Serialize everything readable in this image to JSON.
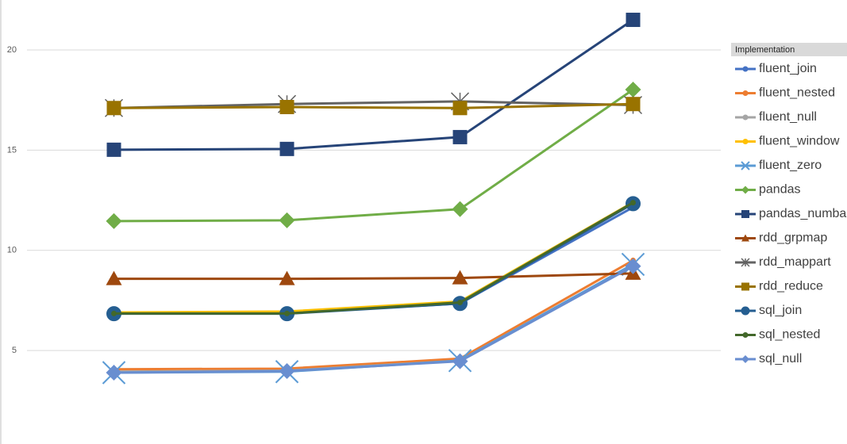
{
  "chart_data": {
    "type": "line",
    "categories": [
      null,
      null,
      null,
      null
    ],
    "ylim": [
      0.34,
      22.49
    ],
    "yticks": [
      5,
      10,
      15,
      20
    ],
    "grid": true,
    "legend_title": "Implementation",
    "legend": "right",
    "series": [
      {
        "name": "fluent_join",
        "color": "#4472c4",
        "marker": "circle",
        "marker_size": 3,
        "values": [
          6.85,
          6.87,
          7.35,
          12.15
        ]
      },
      {
        "name": "fluent_nested",
        "color": "#ed7d31",
        "marker": "circle",
        "marker_size": 3,
        "values": [
          4.07,
          4.1,
          4.6,
          9.5
        ]
      },
      {
        "name": "fluent_null",
        "color": "#a5a5a5",
        "marker": "circle",
        "marker_size": 3,
        "values": [
          3.95,
          4.0,
          4.5,
          9.3
        ]
      },
      {
        "name": "fluent_window",
        "color": "#ffc000",
        "marker": "circle",
        "marker_size": 3,
        "values": [
          6.9,
          6.95,
          7.45,
          12.4
        ]
      },
      {
        "name": "fluent_zero",
        "color": "#5b9bd5",
        "marker": "x",
        "marker_size": 14,
        "values": [
          3.9,
          3.95,
          4.5,
          9.3
        ]
      },
      {
        "name": "pandas",
        "color": "#70ad47",
        "marker": "diamond",
        "marker_size": 10,
        "values": [
          11.46,
          11.5,
          12.06,
          18.02
        ]
      },
      {
        "name": "pandas_numba",
        "color": "#264478",
        "marker": "square",
        "marker_size": 9,
        "values": [
          15.02,
          15.06,
          15.65,
          21.5
        ]
      },
      {
        "name": "rdd_grpmap",
        "color": "#9e480e",
        "marker": "triangle",
        "marker_size": 10,
        "values": [
          8.58,
          8.58,
          8.62,
          8.85
        ]
      },
      {
        "name": "rdd_mappart",
        "color": "#636363",
        "marker": "asterisk",
        "marker_size": 11,
        "values": [
          17.1,
          17.3,
          17.43,
          17.25
        ]
      },
      {
        "name": "rdd_reduce",
        "color": "#997300",
        "marker": "square",
        "marker_size": 9,
        "values": [
          17.1,
          17.15,
          17.1,
          17.3
        ]
      },
      {
        "name": "sql_join",
        "color": "#255e91",
        "marker": "circle",
        "marker_size": 9,
        "values": [
          6.84,
          6.84,
          7.35,
          12.33
        ]
      },
      {
        "name": "sql_nested",
        "color": "#43682b",
        "marker": "circle",
        "marker_size": 3,
        "values": [
          6.85,
          6.85,
          7.4,
          12.38
        ]
      },
      {
        "name": "sql_null",
        "color": "#698ed0",
        "marker": "diamond",
        "marker_size": 10,
        "values": [
          3.9,
          3.98,
          4.47,
          9.21
        ]
      }
    ]
  }
}
